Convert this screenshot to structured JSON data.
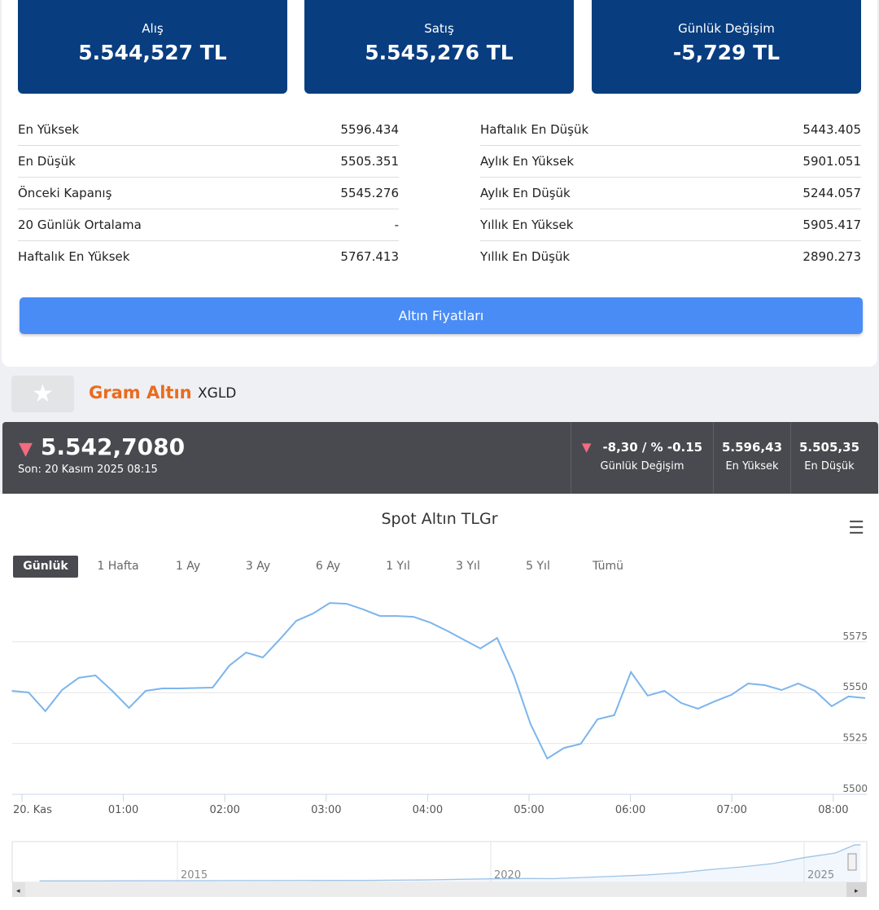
{
  "quotes": [
    {
      "label": "Alış",
      "value": "5.544,527 TL"
    },
    {
      "label": "Satış",
      "value": "5.545,276 TL"
    },
    {
      "label": "Günlük Değişim",
      "value": "-5,729 TL"
    }
  ],
  "stats_left": [
    {
      "label": "En Yüksek",
      "value": "5596.434"
    },
    {
      "label": "En Düşük",
      "value": "5505.351"
    },
    {
      "label": "Önceki Kapanış",
      "value": "5545.276"
    },
    {
      "label": "20 Günlük Ortalama",
      "value": "-"
    },
    {
      "label": "Haftalık En Yüksek",
      "value": "5767.413"
    }
  ],
  "stats_right": [
    {
      "label": "Haftalık En Düşük",
      "value": "5443.405"
    },
    {
      "label": "Aylık En Yüksek",
      "value": "5901.051"
    },
    {
      "label": "Aylık En Düşük",
      "value": "5244.057"
    },
    {
      "label": "Yıllık En Yüksek",
      "value": "5905.417"
    },
    {
      "label": "Yıllık En Düşük",
      "value": "2890.273"
    }
  ],
  "button": "Altın Fiyatları",
  "instrument": {
    "name": "Gram Altın",
    "code": "XGLD",
    "star_icon": "star-icon"
  },
  "ticker": {
    "price": "5.542,7080",
    "last": "Son: 20 Kasım 2025 08:15",
    "change": "-8,30 / % -0.15",
    "change_label": "Günlük Değişim",
    "high": "5.596,43",
    "high_label": "En Yüksek",
    "low": "5.505,35",
    "low_label": "En Düşük",
    "down_color": "#f26b80"
  },
  "ranges": [
    "Günlük",
    "1 Hafta",
    "1 Ay",
    "3 Ay",
    "6 Ay",
    "1 Yıl",
    "3 Yıl",
    "5 Yıl",
    "Tümü"
  ],
  "chart_data": {
    "type": "line",
    "title": "Spot Altın TLGr",
    "ylim": [
      5500,
      5600
    ],
    "yticks": [
      5500,
      5525,
      5550,
      5575
    ],
    "xticks": [
      {
        "m": 0,
        "label": "20. Kas"
      },
      {
        "m": 60,
        "label": "01:00"
      },
      {
        "m": 120,
        "label": "02:00"
      },
      {
        "m": 180,
        "label": "03:00"
      },
      {
        "m": 240,
        "label": "04:00"
      },
      {
        "m": 300,
        "label": "05:00"
      },
      {
        "m": 360,
        "label": "06:00"
      },
      {
        "m": 420,
        "label": "07:00"
      },
      {
        "m": 480,
        "label": "08:00"
      }
    ],
    "start_minute": -6,
    "step_minutes": 9.9,
    "values": [
      5550.9,
      5550.1,
      5540.9,
      5551.3,
      5557.3,
      5558.5,
      5550.9,
      5542.5,
      5550.9,
      5552.1,
      5552.1,
      5552.3,
      5552.5,
      5563.3,
      5569.7,
      5567.3,
      5576.1,
      5585.3,
      5588.9,
      5594.1,
      5593.7,
      5590.9,
      5587.7,
      5587.7,
      5587.3,
      5584.5,
      5580.5,
      5576.1,
      5571.7,
      5576.9,
      5558.5,
      5534.5,
      5517.6,
      5522.8,
      5524.8,
      5536.9,
      5538.9,
      5560.1,
      5548.5,
      5550.9,
      5544.9,
      5542.1,
      5545.7,
      5548.9,
      5554.5,
      5553.7,
      5551.3,
      5554.5,
      5550.9,
      5543.3,
      5548.1,
      5547.3
    ],
    "series_color": "#7cb5ec",
    "navigator": {
      "xticks": [
        2015,
        2020,
        2025
      ],
      "years": [
        2012.8,
        2014,
        2016,
        2018,
        2019,
        2020,
        2020.6,
        2021,
        2022,
        2022.5,
        2023,
        2023.5,
        2024,
        2024.5,
        2025,
        2025.5,
        2025.8,
        2025.9
      ],
      "values": [
        90,
        95,
        130,
        160,
        250,
        400,
        450,
        430,
        800,
        1000,
        1300,
        1800,
        2200,
        2700,
        3600,
        4300,
        5500,
        5550
      ]
    }
  }
}
